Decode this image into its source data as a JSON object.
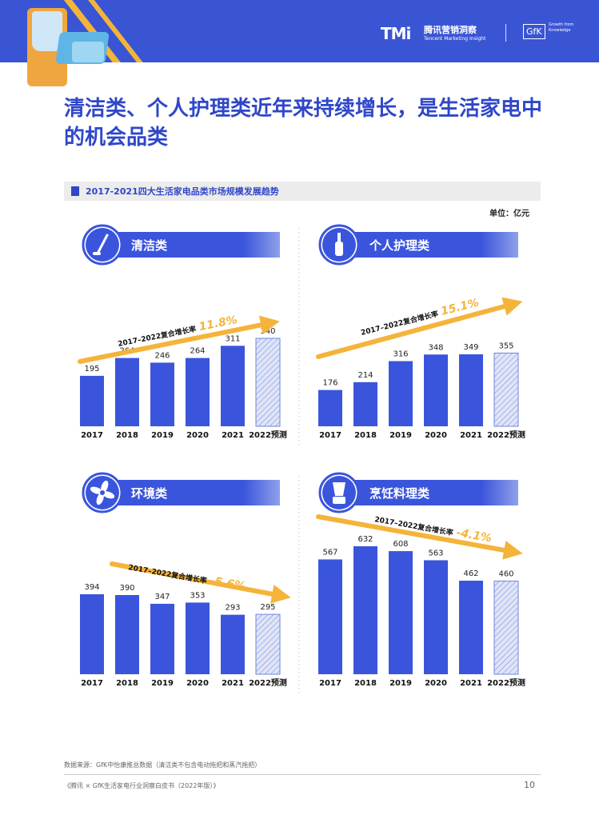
{
  "header": {
    "tmi_logo": "TMi",
    "tmi_name": "腾讯营销洞察",
    "tmi_en": "Tencent Marketing Insight",
    "gfk_logo": "GfK",
    "gfk_tagline": "Growth from Knowledge"
  },
  "page_title": "清洁类、个人护理类近年来持续增长，是生活家电中的机会品类",
  "chart_subtitle": "2017-2021四大生活家电品类市场规模发展趋势",
  "unit": "单位：亿元",
  "colors": {
    "bar": "#3a55dc",
    "forecast_fill": "#dfe4f7",
    "forecast_stroke": "#6f86de",
    "arrow": "#f4b43a",
    "growth_text": "#f4b43a",
    "banner": "#3a55dc",
    "icon_circle": "#3a55dc"
  },
  "chart_data": [
    {
      "type": "bar",
      "panel_title": "清洁类",
      "icon": "vacuum-icon",
      "categories": [
        "2017",
        "2018",
        "2019",
        "2020",
        "2021",
        "2022预测"
      ],
      "values": [
        195,
        264,
        246,
        264,
        311,
        340
      ],
      "forecast_index": 5,
      "cagr_label": "2017–2022复合增长率",
      "cagr_value": "11.8%",
      "trend": "up"
    },
    {
      "type": "bar",
      "panel_title": "个人护理类",
      "icon": "toothbrush-icon",
      "categories": [
        "2017",
        "2018",
        "2019",
        "2020",
        "2021",
        "2022预测"
      ],
      "values": [
        176,
        214,
        316,
        348,
        349,
        355
      ],
      "forecast_index": 5,
      "cagr_label": "2017–2022复合增长率",
      "cagr_value": "15.1%",
      "trend": "up"
    },
    {
      "type": "bar",
      "panel_title": "环境类",
      "icon": "fan-icon",
      "categories": [
        "2017",
        "2018",
        "2019",
        "2020",
        "2021",
        "2022预测"
      ],
      "values": [
        394,
        390,
        347,
        353,
        293,
        295
      ],
      "forecast_index": 5,
      "cagr_label": "2017–2022复合增长率",
      "cagr_value": "-5.6%",
      "trend": "down"
    },
    {
      "type": "bar",
      "panel_title": "烹饪料理类",
      "icon": "blender-icon",
      "categories": [
        "2017",
        "2018",
        "2019",
        "2020",
        "2021",
        "2022预测"
      ],
      "values": [
        567,
        632,
        608,
        563,
        462,
        460
      ],
      "forecast_index": 5,
      "cagr_label": "2017–2022复合增长率",
      "cagr_value": "-4.1%",
      "trend": "down"
    }
  ],
  "footer": {
    "source": "数据来源：GfK中怡康推总数据（清洁类不包含电动拖把和蒸汽拖把）",
    "book": "《腾讯 × GfK生活家电行业洞察白皮书（2022年版）》",
    "page": "10"
  }
}
